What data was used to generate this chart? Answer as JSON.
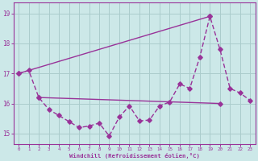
{
  "xlabel": "Windchill (Refroidissement éolien,°C)",
  "bg_color": "#cce8e8",
  "grid_color": "#aacccc",
  "line_color": "#993399",
  "ylim": [
    14.65,
    19.35
  ],
  "xlim": [
    -0.5,
    23.5
  ],
  "yticks": [
    15,
    16,
    17,
    18,
    19
  ],
  "xticks": [
    0,
    1,
    2,
    3,
    4,
    5,
    6,
    7,
    8,
    9,
    10,
    11,
    12,
    13,
    14,
    15,
    16,
    17,
    18,
    19,
    20,
    21,
    22,
    23
  ],
  "line1_x": [
    0,
    1,
    2,
    3,
    4,
    5,
    6,
    7,
    8,
    9,
    10,
    11,
    12,
    13,
    14,
    15,
    16,
    17,
    18,
    19,
    20,
    21,
    22,
    23
  ],
  "line1_y": [
    17.0,
    17.1,
    16.2,
    15.8,
    15.6,
    15.4,
    15.2,
    15.25,
    15.35,
    14.92,
    15.55,
    15.92,
    15.42,
    15.45,
    15.92,
    16.05,
    16.65,
    16.5,
    17.55,
    18.9,
    17.8,
    16.5,
    16.35,
    16.1
  ],
  "line2_x": [
    0,
    19
  ],
  "line2_y": [
    17.0,
    18.9
  ],
  "line3_x": [
    2,
    20
  ],
  "line3_y": [
    16.2,
    16.0
  ]
}
